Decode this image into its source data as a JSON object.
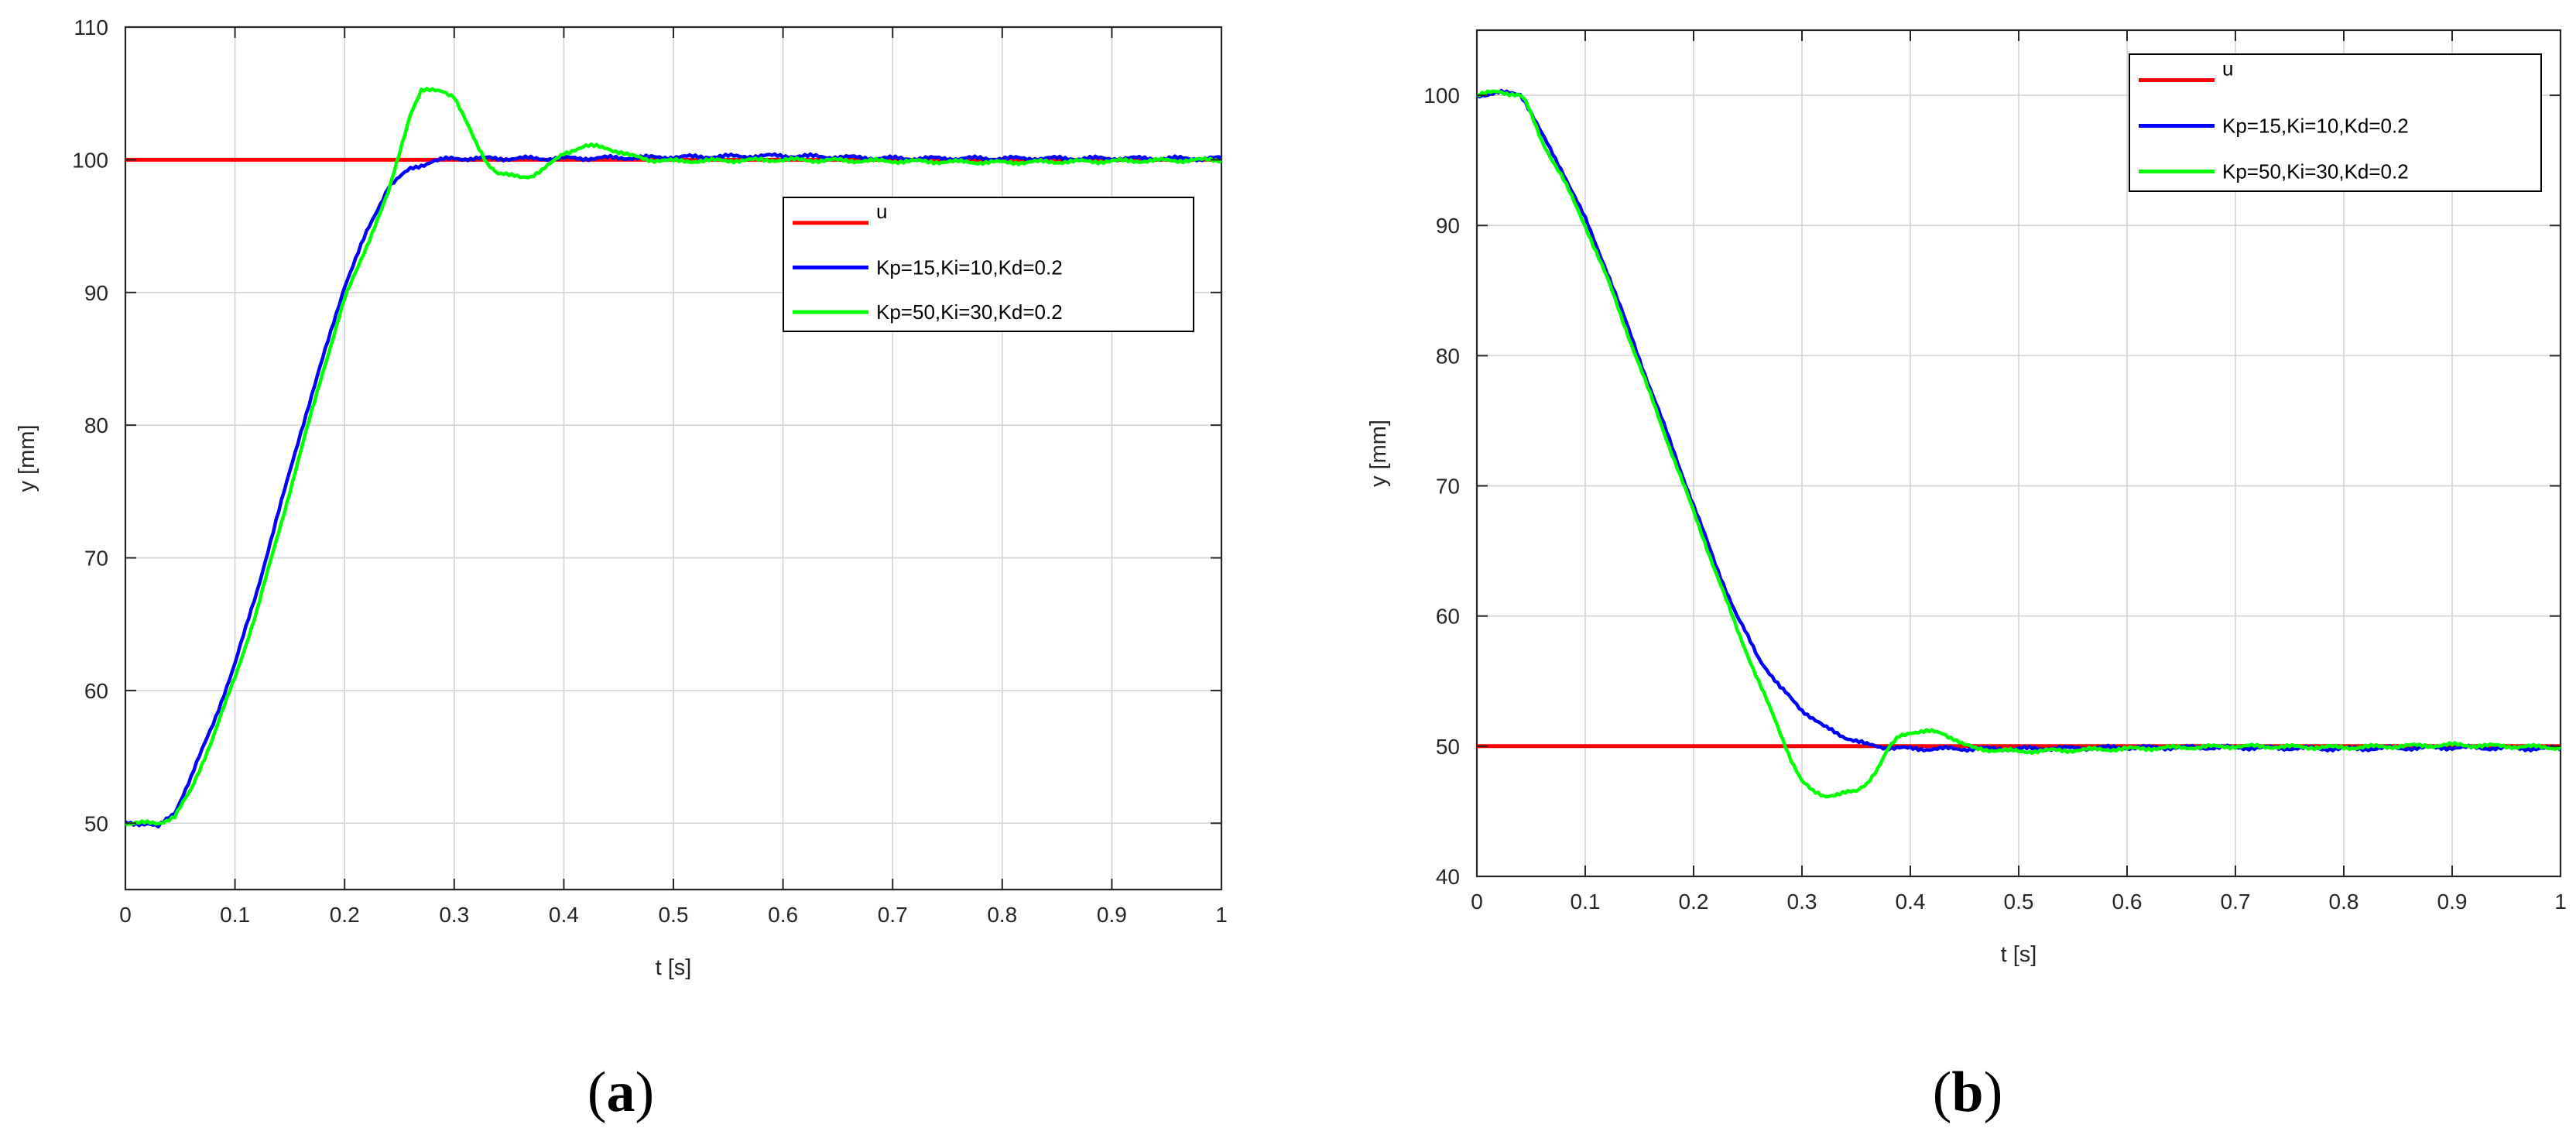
{
  "chart_data": [
    {
      "type": "line",
      "panel_label": "a",
      "title": "",
      "xlabel": "t [s]",
      "ylabel": "y [mm]",
      "xlim": [
        0,
        1
      ],
      "ylim": [
        45,
        110
      ],
      "xticks": [
        0,
        0.1,
        0.2,
        0.3,
        0.4,
        0.5,
        0.6,
        0.7,
        0.8,
        0.9,
        1
      ],
      "xtick_labels": [
        "0",
        "0.1",
        "0.2",
        "0.3",
        "0.4",
        "0.5",
        "0.6",
        "0.7",
        "0.8",
        "0.9",
        "1"
      ],
      "yticks": [
        50,
        60,
        70,
        80,
        90,
        100,
        110
      ],
      "ytick_labels": [
        "50",
        "60",
        "70",
        "80",
        "90",
        "100",
        "110"
      ],
      "grid": true,
      "legend_position": "right, upper-middle",
      "series": [
        {
          "name": "u",
          "color": "#ff0000",
          "x": [
            0,
            1
          ],
          "y": [
            100,
            100
          ]
        },
        {
          "name": "Kp=15,Ki=10,Kd=0.2",
          "color": "#0000ff",
          "x": [
            0,
            0.02,
            0.03,
            0.045,
            0.06,
            0.08,
            0.1,
            0.12,
            0.14,
            0.16,
            0.18,
            0.2,
            0.22,
            0.24,
            0.26,
            0.28,
            0.3,
            0.35,
            0.4,
            0.5,
            0.6,
            0.7,
            0.8,
            0.9,
            1.0
          ],
          "y": [
            50,
            50,
            49.7,
            50.8,
            53.5,
            57.5,
            62,
            67.5,
            73.5,
            79.5,
            85,
            90.5,
            94.5,
            98,
            99.3,
            99.9,
            100.1,
            100.1,
            100.1,
            100.2,
            100.3,
            100.1,
            100.1,
            100.1,
            100.1
          ]
        },
        {
          "name": "Kp=50,Ki=30,Kd=0.2",
          "color": "#00ff00",
          "x": [
            0,
            0.02,
            0.03,
            0.045,
            0.06,
            0.08,
            0.1,
            0.12,
            0.14,
            0.16,
            0.18,
            0.2,
            0.22,
            0.24,
            0.25,
            0.26,
            0.27,
            0.28,
            0.29,
            0.3,
            0.31,
            0.32,
            0.33,
            0.34,
            0.35,
            0.36,
            0.37,
            0.38,
            0.39,
            0.4,
            0.41,
            0.42,
            0.43,
            0.44,
            0.45,
            0.46,
            0.48,
            0.5,
            0.6,
            0.7,
            0.8,
            0.9,
            1.0
          ],
          "y": [
            50,
            50,
            50,
            50.5,
            52.5,
            56.5,
            61,
            66,
            72,
            78,
            84,
            89.5,
            93.5,
            97.5,
            100.5,
            103.5,
            105.2,
            105.2,
            105.2,
            104.8,
            103,
            101.2,
            99.8,
            99,
            98.8,
            98.7,
            98.8,
            99.2,
            99.8,
            100.5,
            100.8,
            101,
            101,
            100.9,
            100.6,
            100.3,
            100,
            99.9,
            100,
            99.9,
            99.8,
            99.9,
            100
          ]
        }
      ]
    },
    {
      "type": "line",
      "panel_label": "b",
      "title": "",
      "xlabel": "t [s]",
      "ylabel": "y [mm]",
      "xlim": [
        0,
        1
      ],
      "ylim": [
        40,
        105
      ],
      "xticks": [
        0,
        0.1,
        0.2,
        0.3,
        0.4,
        0.5,
        0.6,
        0.7,
        0.8,
        0.9,
        1
      ],
      "xtick_labels": [
        "0",
        "0.1",
        "0.2",
        "0.3",
        "0.4",
        "0.5",
        "0.6",
        "0.7",
        "0.8",
        "0.9",
        "1"
      ],
      "yticks": [
        40,
        50,
        60,
        70,
        80,
        90,
        100
      ],
      "ytick_labels": [
        "40",
        "50",
        "60",
        "70",
        "80",
        "90",
        "100"
      ],
      "grid": true,
      "legend_position": "top-right",
      "series": [
        {
          "name": "u",
          "color": "#ff0000",
          "x": [
            0,
            1
          ],
          "y": [
            50,
            50
          ]
        },
        {
          "name": "Kp=15,Ki=10,Kd=0.2",
          "color": "#0000ff",
          "x": [
            0,
            0.02,
            0.04,
            0.045,
            0.06,
            0.08,
            0.1,
            0.12,
            0.14,
            0.16,
            0.18,
            0.2,
            0.22,
            0.24,
            0.26,
            0.28,
            0.3,
            0.32,
            0.34,
            0.36,
            0.38,
            0.4,
            0.45,
            0.5,
            0.6,
            0.7,
            0.8,
            0.9,
            1.0
          ],
          "y": [
            100,
            100.2,
            100.1,
            99.5,
            97,
            94,
            90.5,
            86.5,
            82,
            77.5,
            73,
            68.5,
            64,
            60,
            56.8,
            54.5,
            52.8,
            51.5,
            50.7,
            50.1,
            49.9,
            49.8,
            49.8,
            49.8,
            49.9,
            49.9,
            49.8,
            49.9,
            49.8
          ]
        },
        {
          "name": "Kp=50,Ki=30,Kd=0.2",
          "color": "#00ff00",
          "x": [
            0,
            0.02,
            0.04,
            0.045,
            0.06,
            0.08,
            0.1,
            0.12,
            0.14,
            0.16,
            0.18,
            0.2,
            0.22,
            0.24,
            0.26,
            0.28,
            0.29,
            0.3,
            0.31,
            0.32,
            0.33,
            0.34,
            0.35,
            0.36,
            0.37,
            0.38,
            0.39,
            0.4,
            0.41,
            0.42,
            0.43,
            0.44,
            0.45,
            0.46,
            0.5,
            0.6,
            0.7,
            0.8,
            0.9,
            1.0
          ],
          "y": [
            100,
            100.3,
            100,
            99.5,
            96.5,
            93.5,
            90,
            86,
            81.5,
            77,
            72.5,
            68,
            63.5,
            59,
            55,
            51,
            49,
            47.3,
            46.5,
            46.2,
            46.3,
            46.4,
            46.5,
            47.2,
            48.3,
            49.8,
            50.8,
            51.1,
            51.1,
            51.1,
            51,
            50.6,
            50.1,
            49.8,
            49.6,
            49.8,
            50,
            49.9,
            50.1,
            49.9
          ]
        }
      ]
    }
  ]
}
